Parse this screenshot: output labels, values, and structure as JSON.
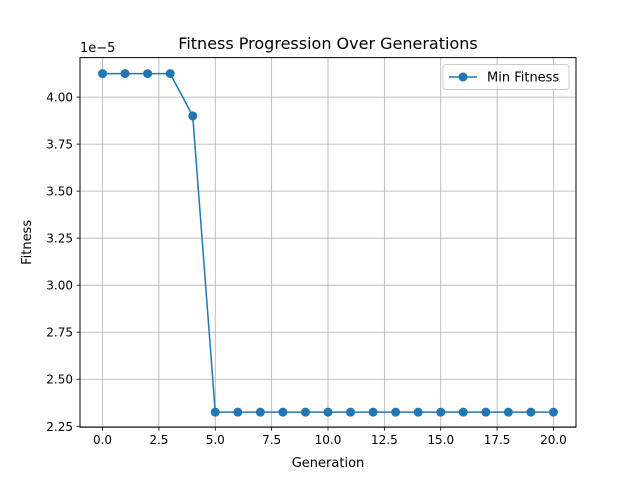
{
  "chart_data": {
    "type": "line",
    "title": "Fitness Progression Over Generations",
    "xlabel": "Generation",
    "ylabel": "Fitness",
    "y_offset_label": "1e−5",
    "xlim": [
      -1.0,
      21.0
    ],
    "ylim": [
      2.245e-05,
      4.21e-05
    ],
    "grid": true,
    "legend_position": "upper right",
    "x_ticks": [
      0.0,
      2.5,
      5.0,
      7.5,
      10.0,
      12.5,
      15.0,
      17.5,
      20.0
    ],
    "x_tick_labels": [
      "0.0",
      "2.5",
      "5.0",
      "7.5",
      "10.0",
      "12.5",
      "15.0",
      "17.5",
      "20.0"
    ],
    "y_ticks": [
      2.25,
      2.5,
      2.75,
      3.0,
      3.25,
      3.5,
      3.75,
      4.0
    ],
    "y_tick_labels": [
      "2.25",
      "2.50",
      "2.75",
      "3.00",
      "3.25",
      "3.50",
      "3.75",
      "4.00"
    ],
    "y_tick_scale": 1e-05,
    "x": [
      0,
      1,
      2,
      3,
      4,
      5,
      6,
      7,
      8,
      9,
      10,
      11,
      12,
      13,
      14,
      15,
      16,
      17,
      18,
      19,
      20
    ],
    "series": [
      {
        "name": "Min Fitness",
        "color": "#1f77b4",
        "marker": "circle",
        "values": [
          4.125e-05,
          4.125e-05,
          4.125e-05,
          4.125e-05,
          3.9e-05,
          2.325e-05,
          2.325e-05,
          2.325e-05,
          2.325e-05,
          2.325e-05,
          2.325e-05,
          2.325e-05,
          2.325e-05,
          2.325e-05,
          2.325e-05,
          2.325e-05,
          2.325e-05,
          2.325e-05,
          2.325e-05,
          2.325e-05,
          2.325e-05
        ]
      }
    ]
  }
}
